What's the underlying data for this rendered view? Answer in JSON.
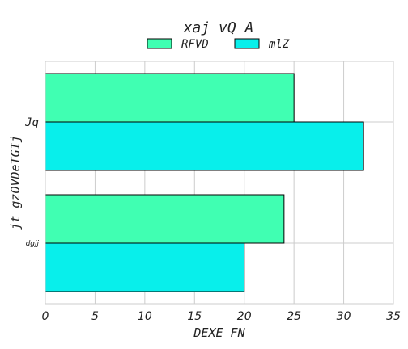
{
  "chart_data": {
    "type": "bar",
    "orientation": "horizontal",
    "title": "xaj  vQ A",
    "xlabel": "DEXE FN",
    "ylabel": "jt gzOVDeTGIj",
    "categories": [
      "Jq",
      "dgjj"
    ],
    "series": [
      {
        "name": "RFVD",
        "values": [
          25,
          24
        ],
        "color": "#40ffb2"
      },
      {
        "name": "mlZ",
        "values": [
          32,
          20
        ],
        "color": "#08efeb"
      }
    ],
    "xlim": [
      0,
      35
    ],
    "xticks": [
      "0",
      "5",
      "10",
      "15",
      "20",
      "25",
      "30",
      "35"
    ],
    "grid": true,
    "legend_position": "top-center"
  }
}
